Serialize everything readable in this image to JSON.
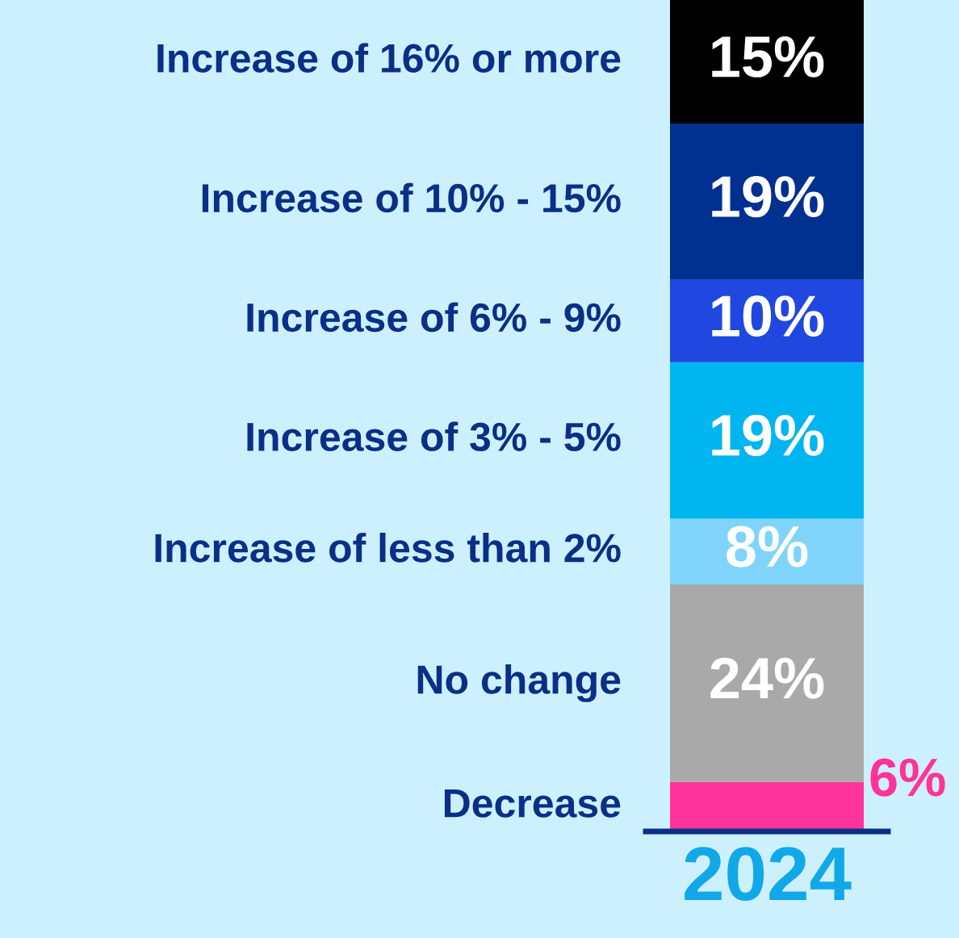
{
  "chart_data": {
    "type": "bar",
    "stacked": true,
    "categories": [
      "2024"
    ],
    "legend": false,
    "series": [
      {
        "name": "Decrease",
        "color": "#ff3399",
        "values": [
          6
        ],
        "value_labels": [
          "6%"
        ]
      },
      {
        "name": "No change",
        "color": "#a9a9a9",
        "values": [
          24
        ],
        "value_labels": [
          "24%"
        ]
      },
      {
        "name": "Increase of less than 2%",
        "color": "#80d4fb",
        "values": [
          8
        ],
        "value_labels": [
          "8%"
        ]
      },
      {
        "name": "Increase of 3% - 5%",
        "color": "#00b5f0",
        "values": [
          19
        ],
        "value_labels": [
          "19%"
        ]
      },
      {
        "name": "Increase of 6% - 9%",
        "color": "#2047e0",
        "values": [
          10
        ],
        "value_labels": [
          "10%"
        ]
      },
      {
        "name": "Increase of 10% - 15%",
        "color": "#003090",
        "values": [
          19
        ],
        "value_labels": [
          "19%"
        ]
      },
      {
        "name": "Increase of 16% or more",
        "color": "#000000",
        "values": [
          15
        ],
        "value_labels": [
          "15%"
        ]
      }
    ]
  }
}
